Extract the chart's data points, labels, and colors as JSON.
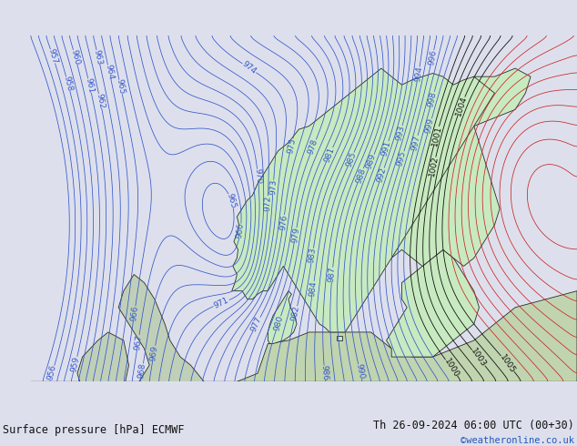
{
  "title_left": "Surface pressure [hPa] ECMWF",
  "title_right": "Th 26-09-2024 06:00 UTC (00+30)",
  "credit": "©weatheronline.co.uk",
  "sea_color": "#c8ccd8",
  "land_color": "#c8eac0",
  "land_color2": "#c0d8b8",
  "contour_blue": "#3355cc",
  "contour_red": "#cc2222",
  "contour_black": "#111111",
  "label_blue": "#3355cc",
  "figsize": [
    6.34,
    4.9
  ],
  "dpi": 100,
  "font_size_labels": 6.5,
  "font_size_title": 8.5,
  "font_size_credit": 7.5,
  "bottom_bar_color": "#dde0ec",
  "text_color": "#111111"
}
